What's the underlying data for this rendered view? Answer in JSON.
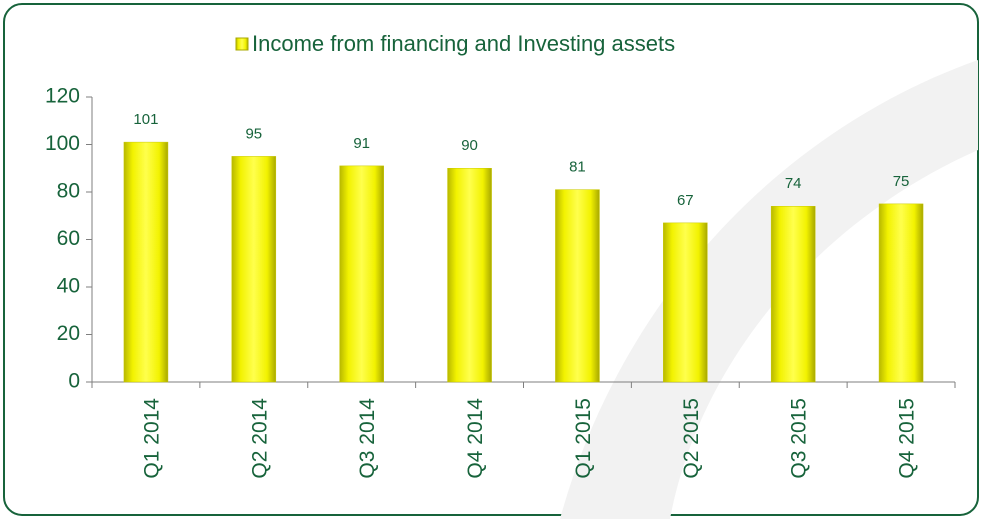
{
  "chart_data": {
    "type": "bar",
    "legend": "Income from financing and Investing assets",
    "categories": [
      "Q1 2014",
      "Q2 2014",
      "Q3 2014",
      "Q4 2014",
      "Q1 2015",
      "Q2 2015",
      "Q3 2015",
      "Q4 2015"
    ],
    "values": [
      101,
      95,
      91,
      90,
      81,
      67,
      74,
      75
    ],
    "color": "#e6e600",
    "ylim": [
      0,
      120
    ],
    "yticks": [
      0,
      20,
      40,
      60,
      80,
      100,
      120
    ],
    "grid": false
  }
}
